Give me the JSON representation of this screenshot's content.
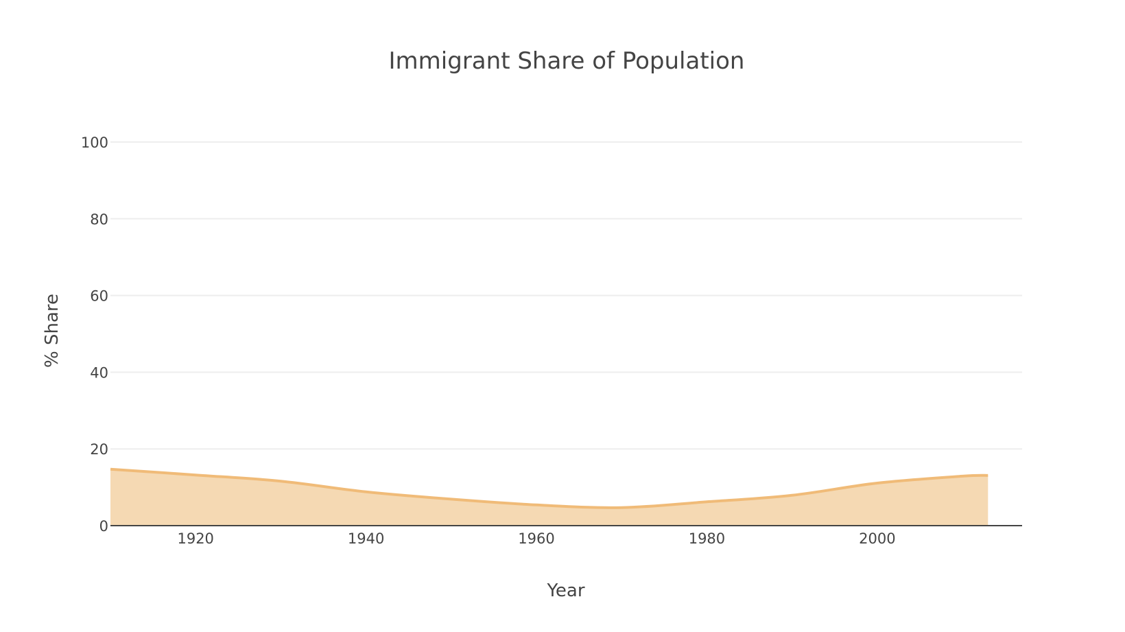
{
  "chart_data": {
    "type": "area",
    "title": "Immigrant Share of Population",
    "xlabel": "Year",
    "ylabel": "% Share",
    "xlim": [
      1910,
      2017
    ],
    "ylim": [
      0,
      100
    ],
    "xticks": [
      "1920",
      "1940",
      "1960",
      "1980",
      "2000"
    ],
    "yticks": [
      "0",
      "20",
      "40",
      "60",
      "80",
      "100"
    ],
    "grid": true,
    "series": [
      {
        "name": "Immigrant share",
        "x": [
          1910,
          1920,
          1930,
          1940,
          1950,
          1960,
          1970,
          1980,
          1990,
          2000,
          2010,
          2013
        ],
        "values": [
          14.7,
          13.2,
          11.6,
          8.8,
          6.9,
          5.4,
          4.7,
          6.2,
          7.9,
          11.1,
          12.9,
          13.1
        ]
      }
    ],
    "colors": {
      "fill": "#f5d9b3",
      "line": "#f0bb78"
    }
  }
}
